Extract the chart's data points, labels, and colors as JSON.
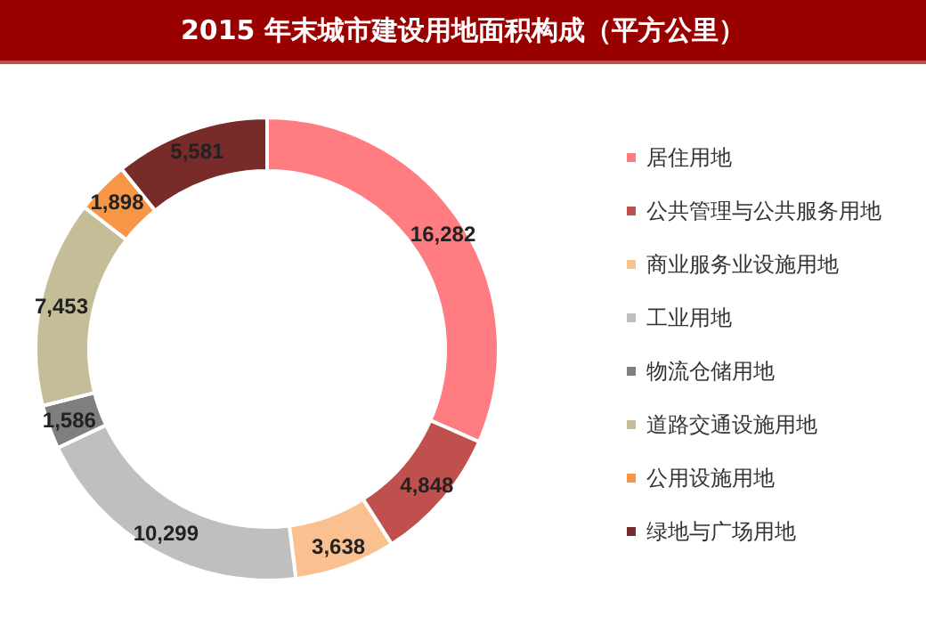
{
  "chart_data": {
    "type": "donut",
    "title": "2015 年末城市建设用地面积构成（平方公里）",
    "categories": [
      "居住用地",
      "公共管理与公共服务用地",
      "商业服务业设施用地",
      "工业用地",
      "物流仓储用地",
      "道路交通设施用地",
      "公用设施用地",
      "绿地与广场用地"
    ],
    "values": [
      16282,
      4848,
      3638,
      10299,
      1586,
      7453,
      1898,
      5581
    ],
    "colors": [
      "#ff7c80",
      "#c0504d",
      "#fac090",
      "#bfbfbf",
      "#7f7f7f",
      "#c4bd97",
      "#f79646",
      "#772c2a"
    ],
    "value_labels": [
      "16,282",
      "4,848",
      "3,638",
      "10,299",
      "1,586",
      "7,453",
      "1,898",
      "5,581"
    ],
    "legend": "right"
  }
}
